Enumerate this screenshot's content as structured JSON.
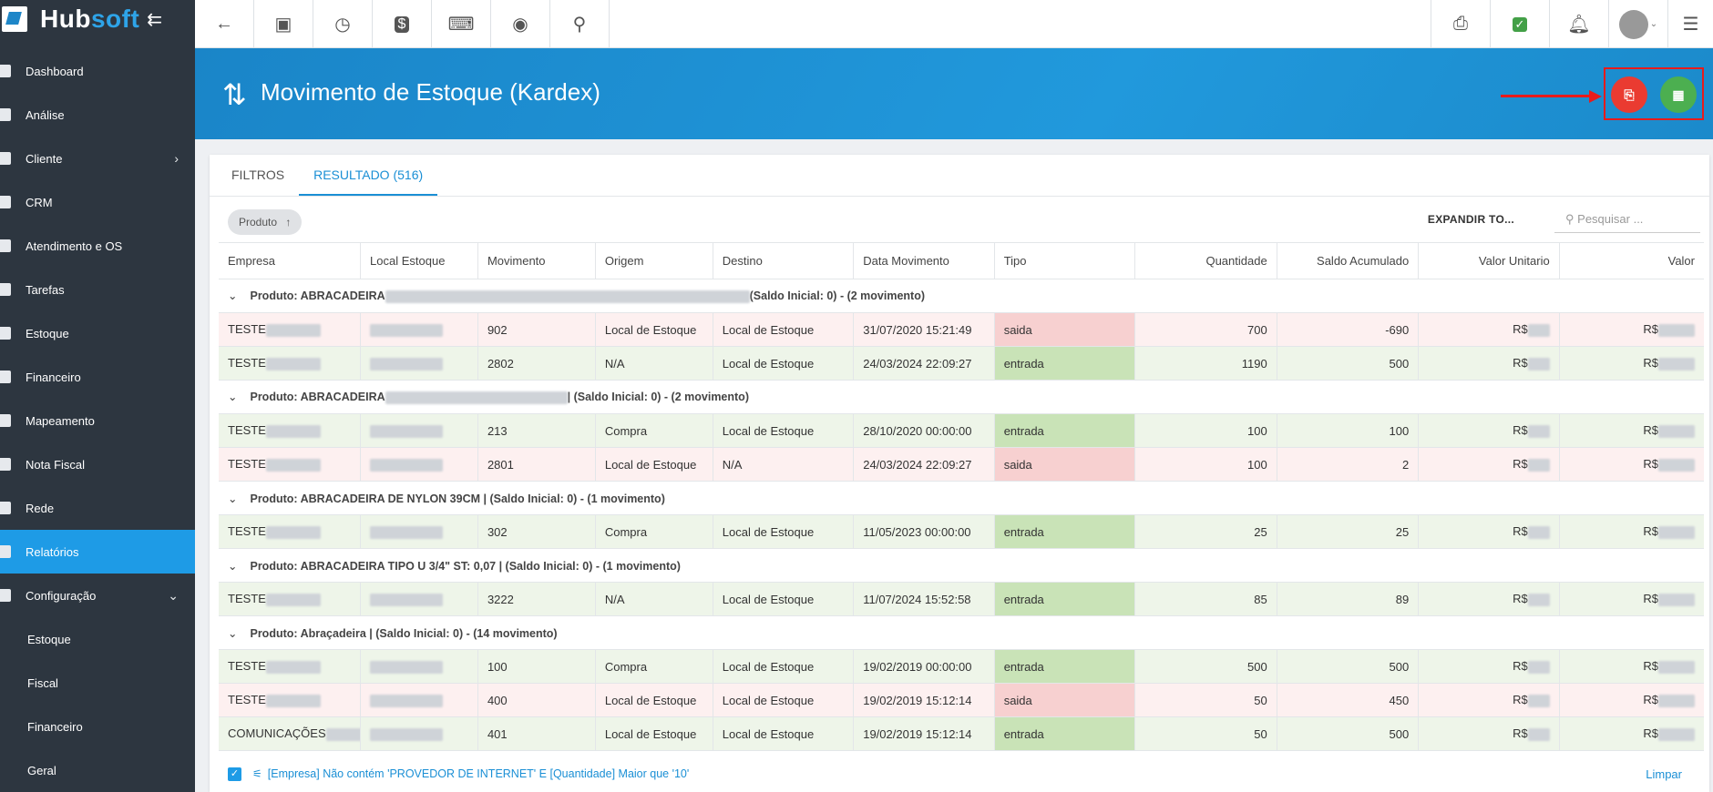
{
  "brand": {
    "name_left": "Hub",
    "name_right": "soft"
  },
  "sidebar": {
    "items": [
      {
        "label": "Dashboard",
        "icon": "dashboard-icon"
      },
      {
        "label": "Análise",
        "icon": "pie-chart-icon"
      },
      {
        "label": "Cliente",
        "icon": "person-icon",
        "chevron": "›"
      },
      {
        "label": "CRM",
        "icon": "kanban-icon"
      },
      {
        "label": "Atendimento e OS",
        "icon": "clock-icon"
      },
      {
        "label": "Tarefas",
        "icon": "calendar-icon"
      },
      {
        "label": "Estoque",
        "icon": "box-icon"
      },
      {
        "label": "Financeiro",
        "icon": "money-icon"
      },
      {
        "label": "Mapeamento",
        "icon": "map-pin-icon"
      },
      {
        "label": "Nota Fiscal",
        "icon": "receipt-icon"
      },
      {
        "label": "Rede",
        "icon": "server-icon"
      },
      {
        "label": "Relatórios",
        "icon": "report-icon"
      },
      {
        "label": "Configuração",
        "icon": "gear-icon",
        "chevron": "⌄"
      },
      {
        "label": "Estoque"
      },
      {
        "label": "Fiscal"
      },
      {
        "label": "Financeiro"
      },
      {
        "label": "Geral"
      }
    ]
  },
  "header": {
    "title": "Movimento de Estoque (Kardex)"
  },
  "tabs": {
    "filters": "FILTROS",
    "results": "RESULTADO (516)"
  },
  "toolbar": {
    "chip": "Produto",
    "expand": "EXPANDIR TO...",
    "search_placeholder": "Pesquisar ..."
  },
  "table": {
    "headers": [
      "Empresa",
      "Local Estoque",
      "Movimento",
      "Origem",
      "Destino",
      "Data Movimento",
      "Tipo",
      "Quantidade",
      "Saldo Acumulado",
      "Valor Unitario",
      "Valor"
    ],
    "groups": [
      {
        "title_start": "Produto: ABRACADEIRA",
        "title_end": "(Saldo Inicial: 0) - (2 movimento)",
        "rows": [
          {
            "empresa": "TESTE",
            "mov": "902",
            "origem": "Local de Estoque",
            "destino": "Local de Estoque",
            "data": "31/07/2020 15:21:49",
            "tipo": "saida",
            "qtd": "700",
            "saldo": "-690",
            "vu": "R$",
            "valor": "R$"
          },
          {
            "empresa": "TESTE",
            "mov": "2802",
            "origem": "N/A",
            "destino": "Local de Estoque",
            "data": "24/03/2024 22:09:27",
            "tipo": "entrada",
            "qtd": "1190",
            "saldo": "500",
            "vu": "R$",
            "valor": "R$"
          }
        ]
      },
      {
        "title_start": "Produto: ABRACADEIRA",
        "title_end": "| (Saldo Inicial: 0) - (2 movimento)",
        "rows": [
          {
            "empresa": "TESTE",
            "mov": "213",
            "origem": "Compra",
            "destino": "Local de Estoque",
            "data": "28/10/2020 00:00:00",
            "tipo": "entrada",
            "qtd": "100",
            "saldo": "100",
            "vu": "R$",
            "valor": "R$"
          },
          {
            "empresa": "TESTE",
            "mov": "2801",
            "origem": "Local de Estoque",
            "destino": "N/A",
            "data": "24/03/2024 22:09:27",
            "tipo": "saida",
            "qtd": "100",
            "saldo": "2",
            "vu": "R$",
            "valor": "R$"
          }
        ]
      },
      {
        "title_start": "Produto: ABRACADEIRA DE NYLON 39CM | (Saldo Inicial: 0) - (1 movimento)",
        "title_end": "",
        "rows": [
          {
            "empresa": "TESTE",
            "mov": "302",
            "origem": "Compra",
            "destino": "Local de Estoque",
            "data": "11/05/2023 00:00:00",
            "tipo": "entrada",
            "qtd": "25",
            "saldo": "25",
            "vu": "R$",
            "valor": "R$"
          }
        ]
      },
      {
        "title_start": "Produto: ABRACADEIRA TIPO U 3/4\" ST: 0,07 | (Saldo Inicial: 0) - (1 movimento)",
        "title_end": "",
        "rows": [
          {
            "empresa": "TESTE",
            "mov": "3222",
            "origem": "N/A",
            "destino": "Local de Estoque",
            "data": "11/07/2024 15:52:58",
            "tipo": "entrada",
            "qtd": "85",
            "saldo": "89",
            "vu": "R$",
            "valor": "R$"
          }
        ]
      },
      {
        "title_start": "Produto: Abraçadeira | (Saldo Inicial: 0) - (14 movimento)",
        "title_end": "",
        "rows": [
          {
            "empresa": "TESTE",
            "mov": "100",
            "origem": "Compra",
            "destino": "Local de Estoque",
            "data": "19/02/2019 00:00:00",
            "tipo": "entrada",
            "qtd": "500",
            "saldo": "500",
            "vu": "R$",
            "valor": "R$"
          },
          {
            "empresa": "TESTE",
            "mov": "400",
            "origem": "Local de Estoque",
            "destino": "Local de Estoque",
            "data": "19/02/2019 15:12:14",
            "tipo": "saida",
            "qtd": "50",
            "saldo": "450",
            "vu": "R$",
            "valor": "R$"
          },
          {
            "empresa": "COMUNICAÇÕES",
            "mov": "401",
            "origem": "Local de Estoque",
            "destino": "Local de Estoque",
            "data": "19/02/2019 15:12:14",
            "tipo": "entrada",
            "qtd": "50",
            "saldo": "500",
            "vu": "R$",
            "valor": "R$"
          }
        ]
      }
    ]
  },
  "footer": {
    "filter_text": "[Empresa] Não contém 'PROVEDOR DE INTERNET' E [Quantidade] Maior que '10'",
    "clear": "Limpar"
  }
}
